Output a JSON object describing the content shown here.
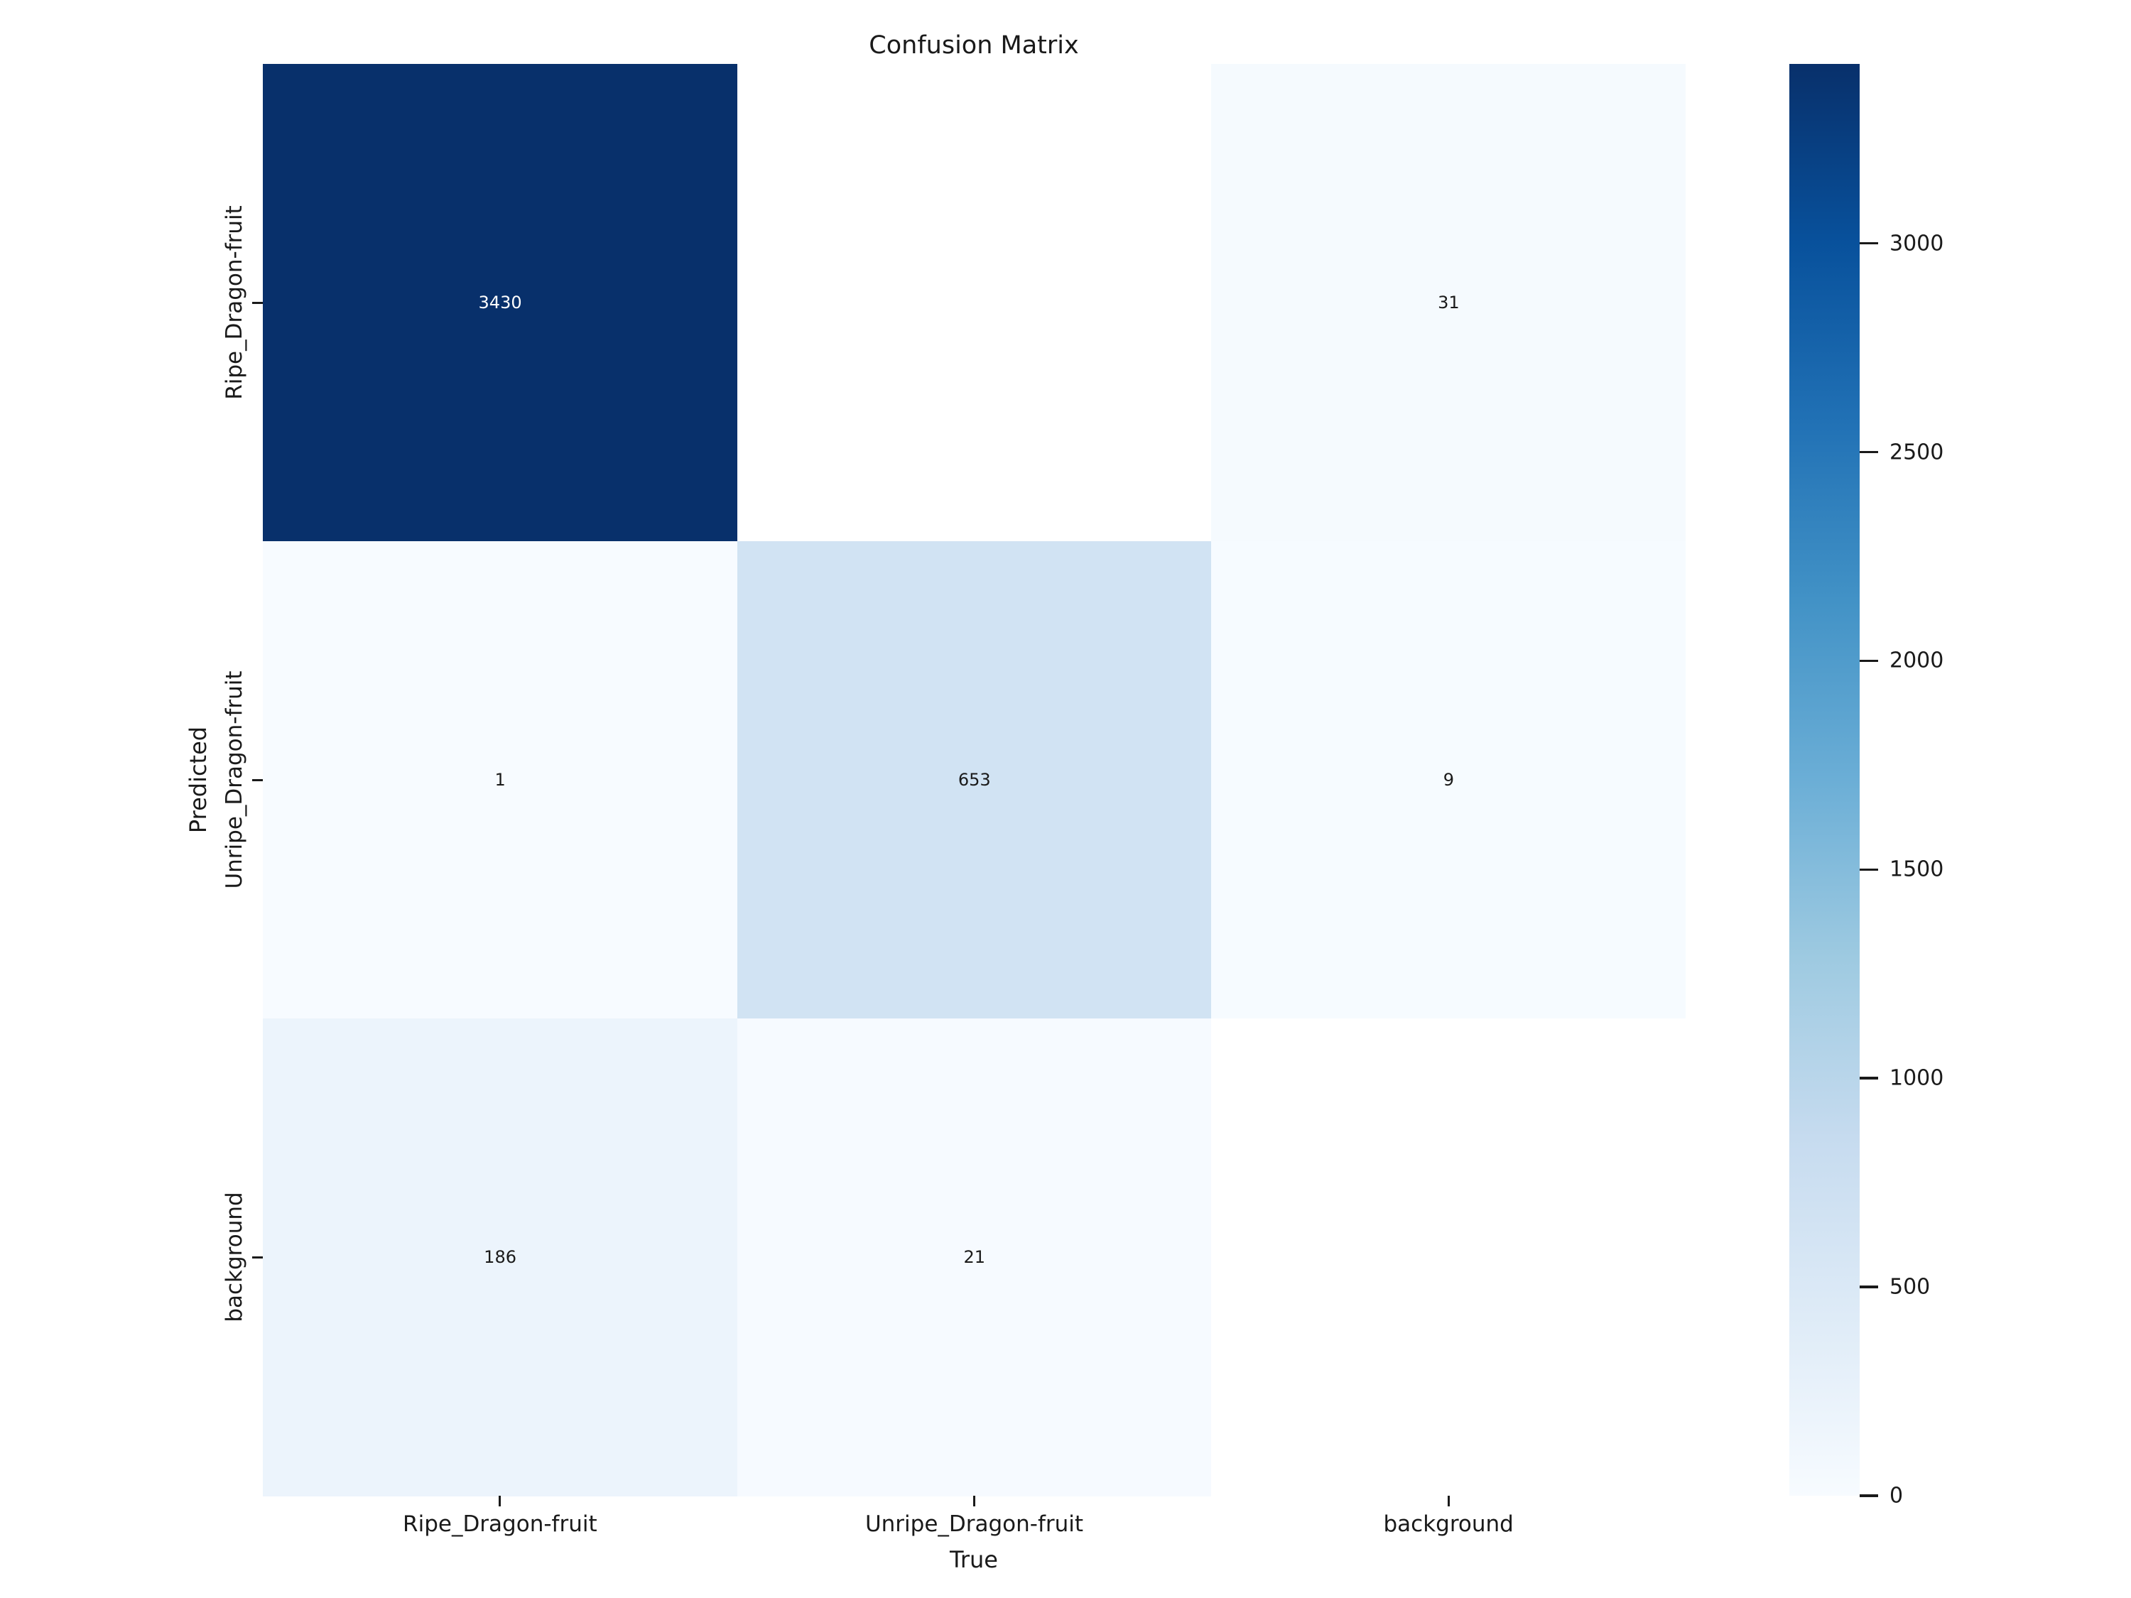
{
  "chart_data": {
    "type": "heatmap",
    "title": "Confusion Matrix",
    "xlabel": "True",
    "ylabel": "Predicted",
    "x_categories": [
      "Ripe_Dragon-fruit",
      "Unripe_Dragon-fruit",
      "background"
    ],
    "y_categories": [
      "Ripe_Dragon-fruit",
      "Unripe_Dragon-fruit",
      "background"
    ],
    "matrix": [
      [
        3430,
        null,
        31
      ],
      [
        1,
        653,
        9
      ],
      [
        186,
        21,
        null
      ]
    ],
    "colormap": "Blues",
    "vmin": 0,
    "vmax": 3430,
    "colorbar_ticks": [
      0,
      500,
      1000,
      1500,
      2000,
      2500,
      3000
    ],
    "colorbar_position": "right",
    "grid": false,
    "colors": {
      "background": "#ffffff",
      "cmap_low": "#f7fbff",
      "cmap_high": "#08306b",
      "empty_cell": "#ffffff",
      "annotation_on_dark": "#ffffff",
      "annotation_on_light": "#1a1a1a",
      "tick_text": "#1a1a1a"
    }
  }
}
